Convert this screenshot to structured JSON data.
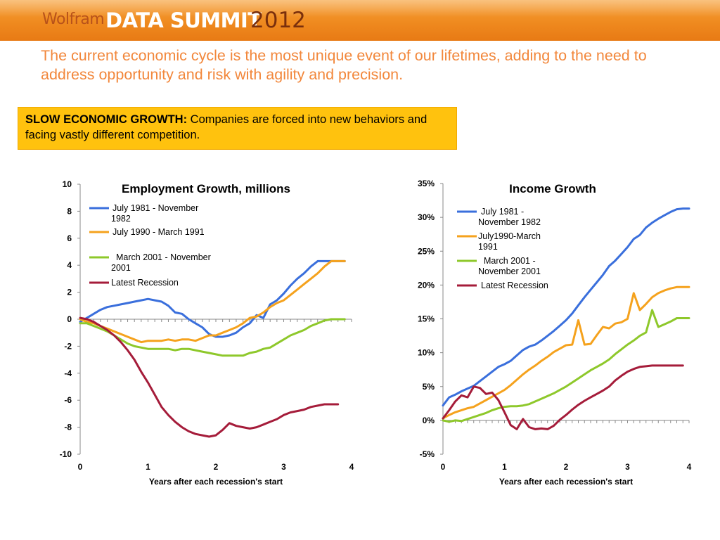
{
  "header": {
    "brand": "Wolfram",
    "event": "DATA SUMMIT",
    "year": "2012"
  },
  "headline": "The current economic cycle is the most unique event of our lifetimes, adding to the need to address opportunity and risk with agility and precision.",
  "callout": {
    "lead": "SLOW ECONOMIC GROWTH:",
    "text": " Companies are forced into new behaviors and facing vastly different competition."
  },
  "colors": {
    "series_blue": "#3a6fdc",
    "series_orange": "#f5a21d",
    "series_green": "#8ec82b",
    "series_red": "#a51c3a",
    "headline": "#f2873b",
    "callout_bg": "#ffc20e"
  },
  "chart_data": [
    {
      "type": "line",
      "title": "Employment Growth, millions",
      "xlabel": "Years after each recession's start",
      "ylabel": "",
      "xlim": [
        0,
        4
      ],
      "ylim": [
        -10,
        10
      ],
      "xticks": [
        "0",
        "1",
        "2",
        "3",
        "4"
      ],
      "yticks": [
        "10",
        "8",
        "6",
        "4",
        "2",
        "0",
        "-2",
        "-4",
        "-6",
        "-8",
        "-10"
      ],
      "legend": "top-left",
      "grid": false,
      "series": [
        {
          "name": "July 1981 - November 1982",
          "color": "#3a6fdc",
          "x": [
            0,
            0.1,
            0.2,
            0.3,
            0.4,
            0.5,
            0.6,
            0.7,
            0.8,
            0.9,
            1.0,
            1.1,
            1.2,
            1.3,
            1.4,
            1.5,
            1.6,
            1.7,
            1.8,
            1.9,
            2.0,
            2.1,
            2.2,
            2.3,
            2.4,
            2.5,
            2.6,
            2.7,
            2.8,
            2.9,
            3.0,
            3.1,
            3.2,
            3.3,
            3.4,
            3.5,
            3.6,
            3.7,
            3.8,
            3.9
          ],
          "y": [
            -0.2,
            0.1,
            0.4,
            0.7,
            0.9,
            1.0,
            1.1,
            1.2,
            1.3,
            1.4,
            1.5,
            1.4,
            1.3,
            1.0,
            0.5,
            0.4,
            0.0,
            -0.3,
            -0.6,
            -1.1,
            -1.3,
            -1.3,
            -1.2,
            -1.0,
            -0.6,
            -0.3,
            0.3,
            0.1,
            1.1,
            1.4,
            1.9,
            2.5,
            3.0,
            3.4,
            3.9,
            4.3,
            4.3,
            4.3,
            4.3,
            4.3
          ]
        },
        {
          "name": "July 1990 - March 1991",
          "color": "#f5a21d",
          "x": [
            0,
            0.1,
            0.2,
            0.3,
            0.4,
            0.5,
            0.6,
            0.7,
            0.8,
            0.9,
            1.0,
            1.1,
            1.2,
            1.3,
            1.4,
            1.5,
            1.6,
            1.7,
            1.8,
            1.9,
            2.0,
            2.1,
            2.2,
            2.3,
            2.4,
            2.5,
            2.6,
            2.7,
            2.8,
            2.9,
            3.0,
            3.1,
            3.2,
            3.3,
            3.4,
            3.5,
            3.6,
            3.7,
            3.8,
            3.9
          ],
          "y": [
            0.0,
            -0.2,
            -0.3,
            -0.5,
            -0.7,
            -0.9,
            -1.1,
            -1.3,
            -1.5,
            -1.7,
            -1.6,
            -1.6,
            -1.6,
            -1.5,
            -1.6,
            -1.5,
            -1.5,
            -1.6,
            -1.4,
            -1.2,
            -1.2,
            -1.0,
            -0.8,
            -0.6,
            -0.3,
            0.1,
            0.2,
            0.5,
            0.9,
            1.2,
            1.4,
            1.8,
            2.2,
            2.6,
            3.0,
            3.4,
            3.9,
            4.3,
            4.3,
            4.3
          ]
        },
        {
          "name": "March 2001 - November 2001",
          "color": "#8ec82b",
          "x": [
            0,
            0.1,
            0.2,
            0.3,
            0.4,
            0.5,
            0.6,
            0.7,
            0.8,
            0.9,
            1.0,
            1.1,
            1.2,
            1.3,
            1.4,
            1.5,
            1.6,
            1.7,
            1.8,
            1.9,
            2.0,
            2.1,
            2.2,
            2.3,
            2.4,
            2.5,
            2.6,
            2.7,
            2.8,
            2.9,
            3.0,
            3.1,
            3.2,
            3.3,
            3.4,
            3.5,
            3.6,
            3.7,
            3.8,
            3.9
          ],
          "y": [
            -0.3,
            -0.3,
            -0.5,
            -0.7,
            -0.9,
            -1.2,
            -1.5,
            -1.8,
            -2.0,
            -2.1,
            -2.2,
            -2.2,
            -2.2,
            -2.2,
            -2.3,
            -2.2,
            -2.2,
            -2.3,
            -2.4,
            -2.5,
            -2.6,
            -2.7,
            -2.7,
            -2.7,
            -2.7,
            -2.5,
            -2.4,
            -2.2,
            -2.1,
            -1.8,
            -1.5,
            -1.2,
            -1.0,
            -0.8,
            -0.5,
            -0.3,
            -0.1,
            0.0,
            0.0,
            0.0
          ]
        },
        {
          "name": "Latest Recession",
          "color": "#a51c3a",
          "x": [
            0,
            0.1,
            0.2,
            0.3,
            0.4,
            0.5,
            0.6,
            0.7,
            0.8,
            0.9,
            1.0,
            1.1,
            1.2,
            1.3,
            1.4,
            1.5,
            1.6,
            1.7,
            1.8,
            1.9,
            2.0,
            2.1,
            2.2,
            2.3,
            2.4,
            2.5,
            2.6,
            2.7,
            2.8,
            2.9,
            3.0,
            3.1,
            3.2,
            3.3,
            3.4,
            3.5,
            3.6,
            3.7,
            3.8
          ],
          "y": [
            0.1,
            0.0,
            -0.2,
            -0.5,
            -0.8,
            -1.2,
            -1.7,
            -2.3,
            -3.0,
            -3.9,
            -4.7,
            -5.6,
            -6.5,
            -7.1,
            -7.6,
            -8.0,
            -8.3,
            -8.5,
            -8.6,
            -8.7,
            -8.6,
            -8.2,
            -7.7,
            -7.9,
            -8.0,
            -8.1,
            -8.0,
            -7.8,
            -7.6,
            -7.4,
            -7.1,
            -6.9,
            -6.8,
            -6.7,
            -6.5,
            -6.4,
            -6.3,
            -6.3,
            -6.3
          ]
        }
      ]
    },
    {
      "type": "line",
      "title": "Income Growth",
      "xlabel": "Years after each recession's start",
      "ylabel": "",
      "xlim": [
        0,
        4
      ],
      "ylim": [
        -5,
        35
      ],
      "xticks": [
        "0",
        "1",
        "2",
        "3",
        "4"
      ],
      "yticks": [
        "35%",
        "30%",
        "25%",
        "20%",
        "15%",
        "10%",
        "5%",
        "0%",
        "-5%"
      ],
      "legend": "top-left",
      "grid": false,
      "series": [
        {
          "name": "July 1981 - November 1982",
          "color": "#3a6fdc",
          "x": [
            0,
            0.1,
            0.2,
            0.3,
            0.4,
            0.5,
            0.6,
            0.7,
            0.8,
            0.9,
            1.0,
            1.1,
            1.2,
            1.3,
            1.4,
            1.5,
            1.6,
            1.7,
            1.8,
            1.9,
            2.0,
            2.1,
            2.2,
            2.3,
            2.4,
            2.5,
            2.6,
            2.7,
            2.8,
            2.9,
            3.0,
            3.1,
            3.2,
            3.3,
            3.4,
            3.5,
            3.6,
            3.7,
            3.8,
            3.9,
            4.0
          ],
          "y": [
            2.2,
            3.4,
            3.8,
            4.3,
            4.7,
            5.1,
            5.8,
            6.5,
            7.2,
            7.9,
            8.3,
            8.8,
            9.6,
            10.4,
            10.9,
            11.2,
            11.8,
            12.5,
            13.2,
            14.0,
            14.8,
            15.8,
            17.0,
            18.2,
            19.3,
            20.4,
            21.5,
            22.8,
            23.6,
            24.6,
            25.6,
            26.8,
            27.4,
            28.5,
            29.2,
            29.8,
            30.3,
            30.8,
            31.2,
            31.3,
            31.3
          ]
        },
        {
          "name": "July1990-March 1991",
          "color": "#f5a21d",
          "x": [
            0,
            0.1,
            0.2,
            0.3,
            0.4,
            0.5,
            0.6,
            0.7,
            0.8,
            0.9,
            1.0,
            1.1,
            1.2,
            1.3,
            1.4,
            1.5,
            1.6,
            1.7,
            1.8,
            1.9,
            2.0,
            2.1,
            2.2,
            2.3,
            2.4,
            2.5,
            2.6,
            2.7,
            2.8,
            2.9,
            3.0,
            3.1,
            3.2,
            3.3,
            3.4,
            3.5,
            3.6,
            3.7,
            3.8,
            3.9,
            4.0
          ],
          "y": [
            0.3,
            0.8,
            1.2,
            1.5,
            1.8,
            2.0,
            2.5,
            3.0,
            3.5,
            4.0,
            4.5,
            5.2,
            6.0,
            6.8,
            7.5,
            8.1,
            8.8,
            9.4,
            10.1,
            10.6,
            11.1,
            11.2,
            14.8,
            11.2,
            11.3,
            12.6,
            13.8,
            13.6,
            14.3,
            14.5,
            15.0,
            18.8,
            16.3,
            17.2,
            18.2,
            18.8,
            19.2,
            19.5,
            19.7,
            19.7,
            19.7
          ]
        },
        {
          "name": "March 2001 - November 2001",
          "color": "#8ec82b",
          "x": [
            0,
            0.1,
            0.2,
            0.3,
            0.4,
            0.5,
            0.6,
            0.7,
            0.8,
            0.9,
            1.0,
            1.1,
            1.2,
            1.3,
            1.4,
            1.5,
            1.6,
            1.7,
            1.8,
            1.9,
            2.0,
            2.1,
            2.2,
            2.3,
            2.4,
            2.5,
            2.6,
            2.7,
            2.8,
            2.9,
            3.0,
            3.1,
            3.2,
            3.3,
            3.4,
            3.5,
            3.6,
            3.7,
            3.8,
            3.9,
            4.0
          ],
          "y": [
            0.0,
            -0.2,
            0.0,
            -0.1,
            0.2,
            0.5,
            0.8,
            1.1,
            1.5,
            1.8,
            2.0,
            2.1,
            2.1,
            2.2,
            2.4,
            2.8,
            3.2,
            3.6,
            4.0,
            4.5,
            5.0,
            5.6,
            6.2,
            6.8,
            7.4,
            7.9,
            8.4,
            9.0,
            9.8,
            10.5,
            11.2,
            11.8,
            12.5,
            13.0,
            16.3,
            13.8,
            14.2,
            14.6,
            15.1,
            15.1,
            15.1
          ]
        },
        {
          "name": "Latest Recession",
          "color": "#a51c3a",
          "x": [
            0,
            0.1,
            0.2,
            0.3,
            0.4,
            0.5,
            0.6,
            0.7,
            0.8,
            0.9,
            1.0,
            1.1,
            1.2,
            1.3,
            1.4,
            1.5,
            1.6,
            1.7,
            1.8,
            1.9,
            2.0,
            2.1,
            2.2,
            2.3,
            2.4,
            2.5,
            2.6,
            2.7,
            2.8,
            2.9,
            3.0,
            3.1,
            3.2,
            3.3,
            3.4,
            3.5,
            3.6,
            3.7,
            3.8,
            3.9
          ],
          "y": [
            0.3,
            1.5,
            2.8,
            3.7,
            3.4,
            5.0,
            4.8,
            3.9,
            4.1,
            3.0,
            1.2,
            -0.7,
            -1.3,
            0.2,
            -1.0,
            -1.3,
            -1.2,
            -1.3,
            -0.8,
            0.1,
            0.8,
            1.6,
            2.3,
            2.9,
            3.4,
            3.9,
            4.4,
            5.0,
            5.9,
            6.6,
            7.2,
            7.6,
            7.9,
            8.0,
            8.1,
            8.1,
            8.1,
            8.1,
            8.1,
            8.1
          ]
        }
      ]
    }
  ]
}
